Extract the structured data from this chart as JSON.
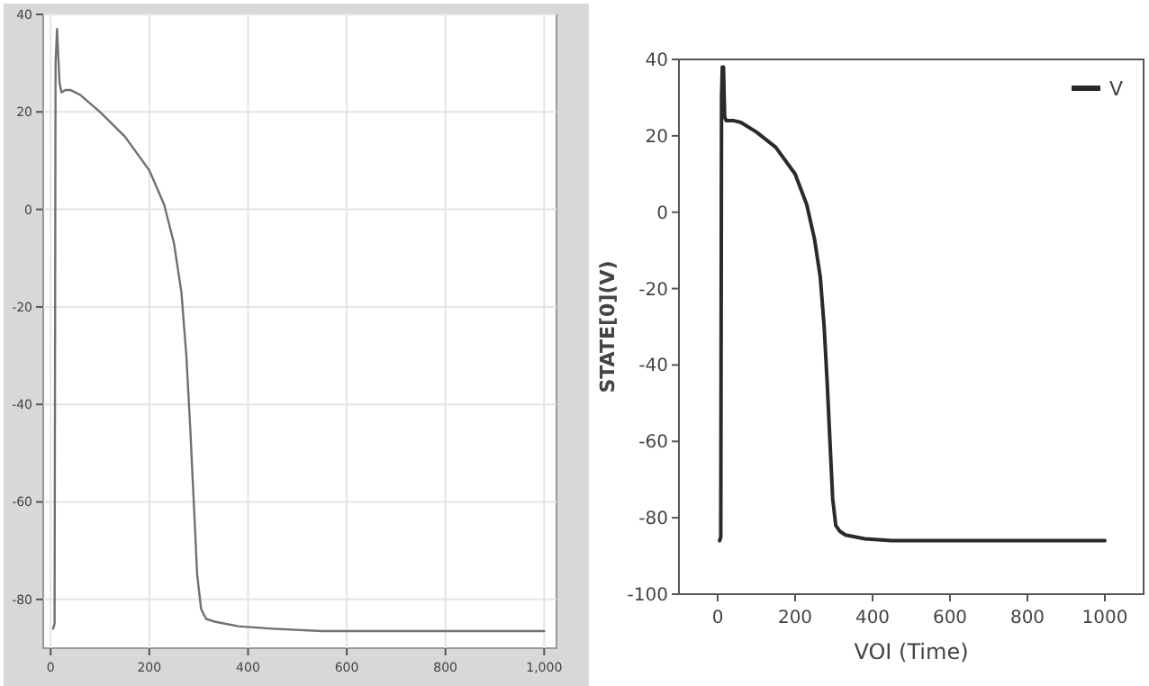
{
  "chart_data": [
    {
      "type": "line",
      "xlim": [
        -15,
        1025
      ],
      "ylim": [
        -90,
        40
      ],
      "xticks": [
        0,
        200,
        400,
        600,
        800,
        {
          "value": 1000,
          "label": "1,000"
        }
      ],
      "yticks": [
        -80,
        -60,
        -40,
        -20,
        0,
        20,
        40
      ],
      "grid": true,
      "legend": false,
      "series": [
        {
          "color": "#707070",
          "x": [
            5,
            8,
            10,
            13,
            18,
            22,
            30,
            40,
            60,
            100,
            150,
            200,
            230,
            250,
            265,
            275,
            283,
            290,
            297,
            305,
            315,
            330,
            380,
            450,
            550,
            700,
            1000
          ],
          "values": [
            -86,
            -85,
            30,
            37,
            26,
            24,
            24.5,
            24.5,
            23.5,
            20,
            15,
            8,
            1,
            -7,
            -17,
            -30,
            -45,
            -60,
            -75,
            -82,
            -84,
            -84.5,
            -85.5,
            -86,
            -86.5,
            -86.5,
            -86.5
          ]
        }
      ]
    },
    {
      "type": "line",
      "xlabel": "VOI (Time)",
      "ylabel": "STATE[0](V)",
      "xlim": [
        -100,
        1100
      ],
      "ylim": [
        -100,
        40
      ],
      "xticks": [
        0,
        200,
        400,
        600,
        800,
        1000
      ],
      "yticks": [
        -100,
        -80,
        -60,
        -40,
        -20,
        0,
        20,
        40
      ],
      "grid": false,
      "legend": "top right",
      "series": [
        {
          "name": "V",
          "color": "#2a2a2a",
          "x": [
            5,
            8,
            10,
            12,
            15,
            18,
            22,
            30,
            40,
            60,
            100,
            150,
            200,
            230,
            250,
            265,
            275,
            283,
            290,
            297,
            305,
            315,
            330,
            380,
            450,
            550,
            700,
            1000
          ],
          "values": [
            -86,
            -85,
            30,
            38,
            38,
            25,
            24,
            24,
            24,
            23.5,
            21,
            17,
            10,
            2,
            -7,
            -17,
            -30,
            -45,
            -60,
            -75,
            -82,
            -83.5,
            -84.5,
            -85.5,
            -86,
            -86,
            -86,
            -86
          ]
        }
      ]
    }
  ]
}
